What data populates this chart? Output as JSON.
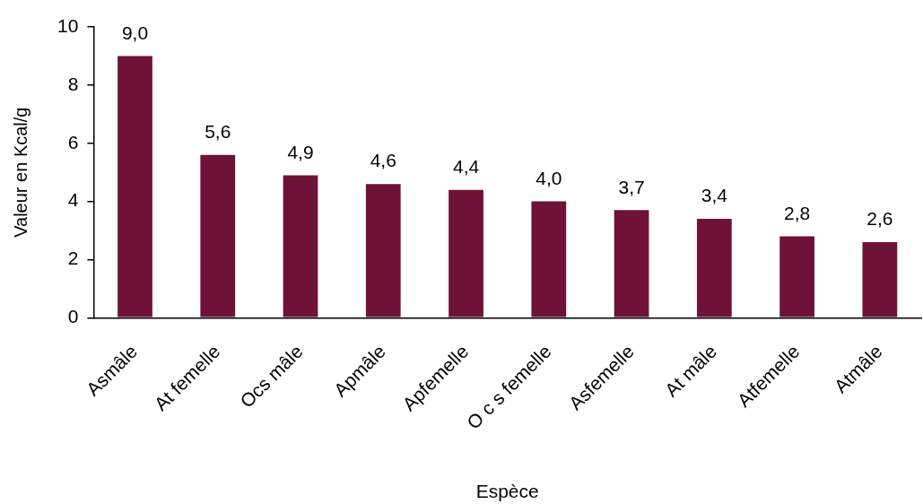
{
  "chart_data": {
    "type": "bar",
    "xlabel": "Espèce",
    "ylabel": "Valeur en Kcal/g",
    "categories": [
      "Asmâle",
      "At femelle",
      "Ocs mâle",
      "Apmâle",
      "Apfemelle",
      "O c s femelle",
      "Asfemelle",
      "At mâle",
      "Atfemelle",
      "Atmâle"
    ],
    "values": [
      9.0,
      5.6,
      4.9,
      4.6,
      4.4,
      4.0,
      3.7,
      3.4,
      2.8,
      2.6
    ],
    "value_labels": [
      "9,0",
      "5,6",
      "4,9",
      "4,6",
      "4,4",
      "4,0",
      "3,7",
      "3,4",
      "2,8",
      "2,6"
    ],
    "color": "#6e1238",
    "ylim": [
      0,
      10
    ],
    "yticks": [
      0,
      2,
      4,
      6,
      8,
      10
    ],
    "grid": false,
    "legend": false
  }
}
